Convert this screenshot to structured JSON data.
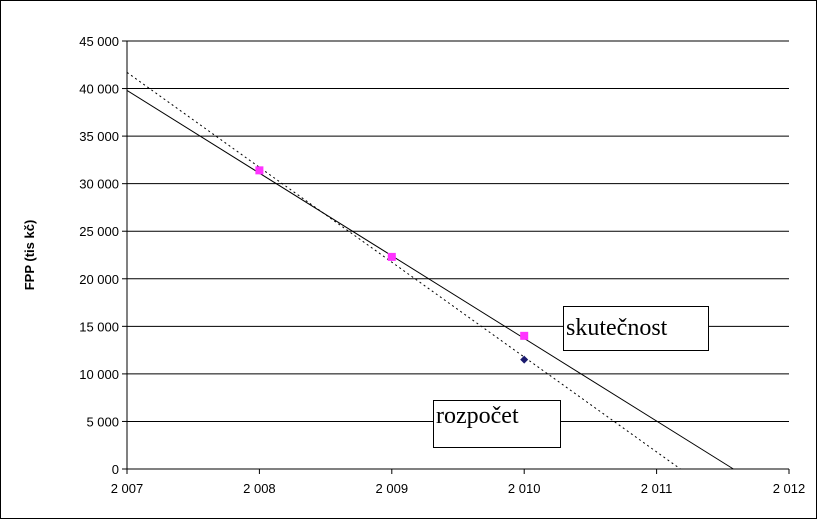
{
  "chart_data": {
    "type": "scatter",
    "xlabel": "",
    "ylabel": "FPP (tis kč)",
    "xlim": [
      2007,
      2012
    ],
    "ylim": [
      0,
      45000
    ],
    "xticks": [
      2007,
      2008,
      2009,
      2010,
      2011,
      2012
    ],
    "yticks": [
      0,
      5000,
      10000,
      15000,
      20000,
      25000,
      30000,
      35000,
      40000,
      45000
    ],
    "xtick_labels": [
      "2 007",
      "2 008",
      "2 009",
      "2 010",
      "2 011",
      "2 012"
    ],
    "ytick_labels": [
      "0",
      "5 000",
      "10 000",
      "15 000",
      "20 000",
      "25 000",
      "30 000",
      "35 000",
      "40 000",
      "45 000"
    ],
    "grid": "horizontal",
    "series": [
      {
        "name": "rozpočet",
        "marker": "diamond",
        "color": "#1a1a6e",
        "x": [
          2008,
          2009,
          2010
        ],
        "y": [
          31400,
          22300,
          11500
        ]
      },
      {
        "name": "skutečnost",
        "marker": "square",
        "color": "#ff33ff",
        "x": [
          2008,
          2009,
          2010
        ],
        "y": [
          31400,
          22300,
          14000
        ]
      }
    ],
    "trendlines": [
      {
        "series": "rozpočet",
        "style": "dotted",
        "x": [
          2007,
          2011.18
        ],
        "y": [
          41700,
          0
        ]
      },
      {
        "series": "skutečnost",
        "style": "solid",
        "x": [
          2007,
          2011.58
        ],
        "y": [
          39800,
          0
        ]
      }
    ],
    "annotations": [
      {
        "id": "skutecnost",
        "text": "skutečnost"
      },
      {
        "id": "rozpocet",
        "text": "rozpočet"
      }
    ]
  }
}
